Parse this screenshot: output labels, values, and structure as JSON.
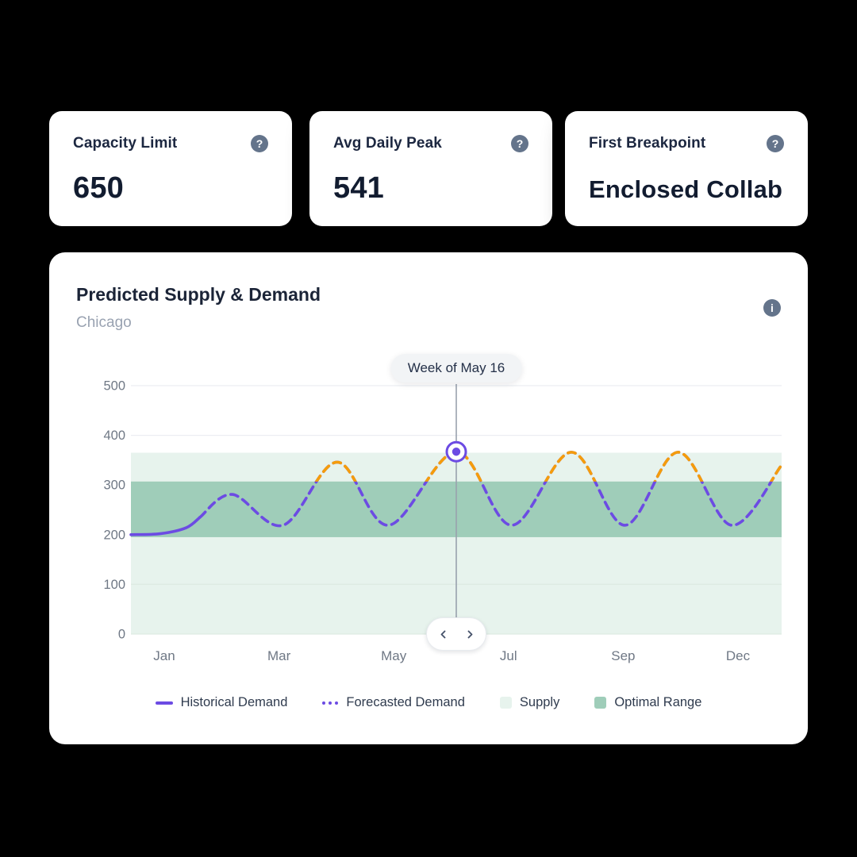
{
  "stat_cards": [
    {
      "label": "Capacity Limit",
      "value": "650"
    },
    {
      "label": "Avg Daily Peak",
      "value": "541"
    },
    {
      "label": "First Breakpoint",
      "value": "Enclosed Collab"
    }
  ],
  "icons": {
    "help_glyph": "?",
    "info_glyph": "i"
  },
  "chart_card": {
    "title": "Predicted Supply & Demand",
    "subtitle": "Chicago",
    "tooltip_label": "Week of May 16"
  },
  "colors": {
    "purple": "#6C4BE3",
    "orange": "#F59C0B",
    "supply_band": "#E7F3ED",
    "optimal_band": "#9FCDB9",
    "grid_line": "#ECEEF2",
    "grid_line_on_band": "#DDEAE2",
    "axis_text": "#6F7885",
    "selector_line": "#99A1AE"
  },
  "chart_data": {
    "type": "line",
    "title": "Predicted Supply & Demand",
    "subtitle": "Chicago",
    "ylim": [
      0,
      500
    ],
    "y_ticks": [
      500,
      400,
      300,
      200,
      100,
      0
    ],
    "x_tick_labels": [
      "Jan",
      "Mar",
      "May",
      "Jul",
      "Sep",
      "Dec"
    ],
    "grid": "horizontal",
    "legend_position": "bottom",
    "bands": [
      {
        "name": "Supply",
        "range": [
          0,
          365
        ],
        "color": "#E7F3ED"
      },
      {
        "name": "Optimal Range",
        "range": [
          195,
          307
        ],
        "color": "#9FCDB9"
      }
    ],
    "selected_point": {
      "label": "Week of May 16",
      "x": 0.5,
      "value": 367
    },
    "series": [
      {
        "name": "Historical Demand",
        "style": "solid",
        "color": "#6C4BE3",
        "points": [
          [
            0,
            200
          ],
          [
            0.045,
            202
          ],
          [
            0.085,
            214
          ],
          [
            0.106,
            235
          ]
        ]
      },
      {
        "name": "Forecasted Demand",
        "style": "dashed",
        "color": "#6C4BE3",
        "above_optimal_color": "#F59C0B",
        "points": [
          [
            0.106,
            235
          ],
          [
            0.156,
            281
          ],
          [
            0.234,
            219
          ],
          [
            0.317,
            346
          ],
          [
            0.396,
            219
          ],
          [
            0.5,
            367
          ],
          [
            0.585,
            219
          ],
          [
            0.677,
            366
          ],
          [
            0.759,
            219
          ],
          [
            0.841,
            366
          ],
          [
            0.923,
            219
          ],
          [
            1,
            340
          ]
        ]
      }
    ],
    "legend": [
      {
        "label": "Historical Demand",
        "swatch": "line-solid",
        "color": "#6C4BE3"
      },
      {
        "label": "Forecasted Demand",
        "swatch": "line-dotted",
        "color": "#6C4BE3"
      },
      {
        "label": "Supply",
        "swatch": "square",
        "color": "#E7F3ED"
      },
      {
        "label": "Optimal Range",
        "swatch": "square",
        "color": "#9FCDB9"
      }
    ]
  }
}
